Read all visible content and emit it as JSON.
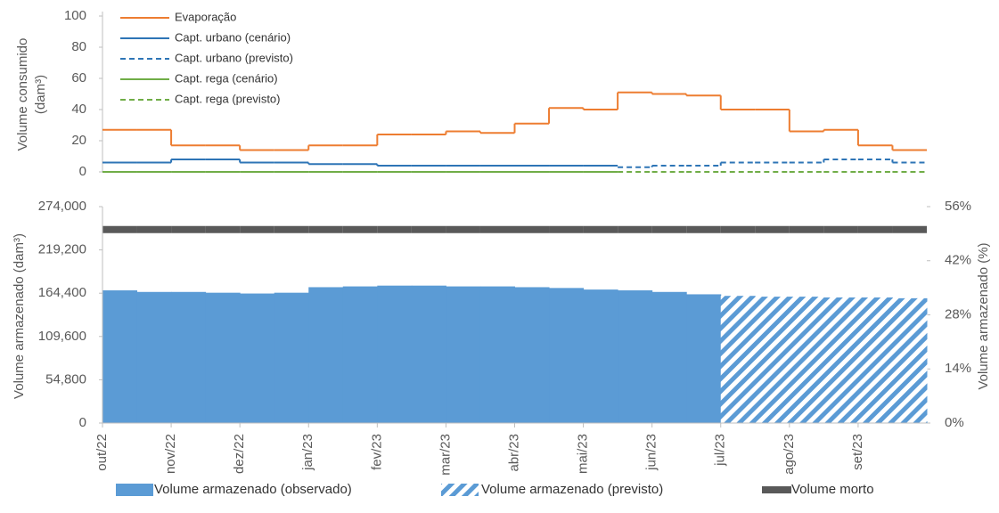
{
  "chart_data": [
    {
      "type": "line",
      "ylabel": [
        "Volume consumido",
        "(dam³)"
      ],
      "ylim": [
        0,
        100
      ],
      "yticks": [
        0,
        20,
        40,
        60,
        80,
        100
      ],
      "legend": "top-left",
      "series": [
        {
          "name": "Evaporação",
          "color": "#ed7d31",
          "style": "solid",
          "values": [
            27,
            27,
            17,
            17,
            14,
            14,
            17,
            17,
            24,
            24,
            26,
            25,
            31,
            41,
            40,
            51,
            50,
            49,
            40,
            40,
            26,
            27,
            17,
            14
          ]
        },
        {
          "name": "Capt. urbano (cenário)",
          "color": "#2e75b6",
          "style": "solid",
          "values": [
            6,
            6,
            8,
            8,
            6,
            6,
            5,
            5,
            4,
            4,
            4,
            4,
            4,
            4,
            4,
            null,
            null,
            null,
            null,
            null,
            null,
            null,
            null,
            null
          ]
        },
        {
          "name": "Capt. urbano (previsto)",
          "color": "#2e75b6",
          "style": "dashed",
          "values": [
            null,
            null,
            null,
            null,
            null,
            null,
            null,
            null,
            null,
            null,
            null,
            null,
            null,
            null,
            null,
            3,
            4,
            4,
            6,
            6,
            6,
            8,
            8,
            6
          ]
        },
        {
          "name": "Capt. rega (cenário)",
          "color": "#70ad47",
          "style": "solid",
          "values": [
            0,
            0,
            0,
            0,
            0,
            0,
            0,
            0,
            0,
            0,
            0,
            0,
            0,
            0,
            0,
            null,
            null,
            null,
            null,
            null,
            null,
            null,
            null,
            null
          ]
        },
        {
          "name": "Capt. rega (previsto)",
          "color": "#70ad47",
          "style": "dashed",
          "values": [
            null,
            null,
            null,
            null,
            null,
            null,
            null,
            null,
            null,
            null,
            null,
            null,
            null,
            null,
            null,
            0,
            0,
            0,
            0,
            0,
            0,
            0,
            0,
            0
          ]
        }
      ]
    },
    {
      "type": "area",
      "ylabel": "Volume armazenado (dam³)",
      "y2label": "Volume armazenado (%)",
      "categories": [
        "out/22",
        null,
        "nov/22",
        null,
        "dez/22",
        null,
        "jan/23",
        null,
        "fev/23",
        null,
        "mar/23",
        null,
        "abr/23",
        null,
        "mai/23",
        null,
        "jun/23",
        null,
        "jul/23",
        null,
        "ago/23",
        null,
        "set/23",
        null
      ],
      "ylim": [
        0,
        274000
      ],
      "yticks": [
        0,
        {
          "value": 54800,
          "label": "54,800"
        },
        {
          "value": 109600,
          "label": "109,600"
        },
        {
          "value": 164400,
          "label": "164,400"
        },
        {
          "value": 219200,
          "label": "219,200"
        },
        {
          "value": 274000,
          "label": "274,000"
        }
      ],
      "y2lim": [
        0,
        56
      ],
      "y2ticks": [
        {
          "value": 0,
          "label": "0%"
        },
        {
          "value": 14,
          "label": "14%"
        },
        {
          "value": 28,
          "label": "28%"
        },
        {
          "value": 42,
          "label": "42%"
        },
        {
          "value": 56,
          "label": "56%"
        }
      ],
      "legend": "bottom",
      "series": [
        {
          "name": "Volume armazenado (observado)",
          "color": "#5b9bd5",
          "style": "fill",
          "values": [
            168000,
            166000,
            166000,
            165000,
            164000,
            165000,
            172000,
            173000,
            174000,
            174000,
            173000,
            173000,
            172000,
            171000,
            169000,
            168000,
            166000,
            163000,
            null,
            null,
            null,
            null,
            null,
            null
          ]
        },
        {
          "name": "Volume armazenado (previsto)",
          "color": "#5b9bd5",
          "style": "hatch",
          "values": [
            null,
            null,
            null,
            null,
            null,
            null,
            null,
            null,
            null,
            null,
            null,
            null,
            null,
            null,
            null,
            null,
            null,
            null,
            161000,
            160000,
            160000,
            159000,
            159000,
            158000
          ]
        },
        {
          "name": "Volume morto",
          "color": "#595959",
          "style": "line",
          "values": [
            245000,
            245000,
            245000,
            245000,
            245000,
            245000,
            245000,
            245000,
            245000,
            245000,
            245000,
            245000,
            245000,
            245000,
            245000,
            245000,
            245000,
            245000,
            245000,
            245000,
            245000,
            245000,
            245000,
            245000
          ]
        }
      ]
    }
  ]
}
